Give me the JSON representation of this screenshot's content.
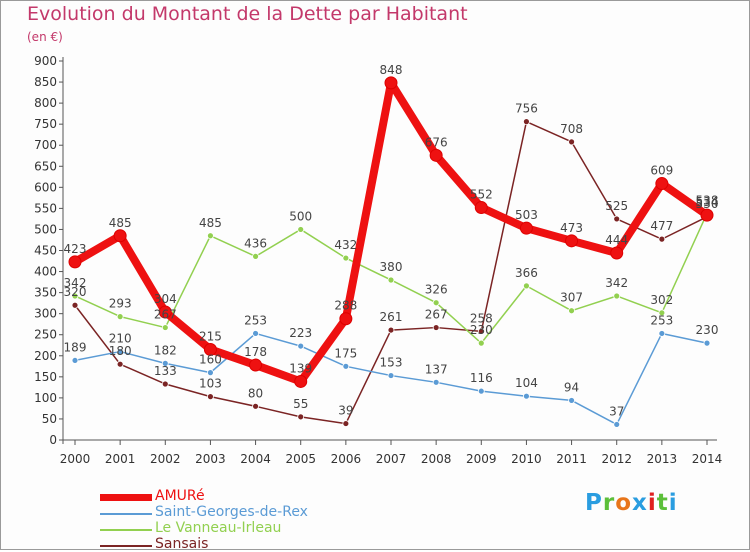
{
  "header": {
    "title": "Evolution du Montant de la Dette par Habitant",
    "subtitle": "(en €)"
  },
  "logo": {
    "text": "Proxiti",
    "colors": [
      "#2a9de0",
      "#5cbf3a",
      "#e8751a",
      "#2a9de0",
      "#e02020",
      "#5cbf3a",
      "#2a9de0"
    ]
  },
  "chart_data": {
    "type": "line",
    "title": "Evolution du Montant de la Dette par Habitant",
    "subtitle": "(en €)",
    "x": [
      "2000",
      "2001",
      "2002",
      "2003",
      "2004",
      "2005",
      "2006",
      "2007",
      "2008",
      "2009",
      "2010",
      "2011",
      "2012",
      "2013",
      "2014"
    ],
    "ylim": [
      0,
      900
    ],
    "yticks": [
      0,
      50,
      100,
      150,
      200,
      250,
      300,
      350,
      400,
      450,
      500,
      550,
      600,
      650,
      700,
      750,
      800,
      850,
      900
    ],
    "grid": false,
    "legend_position": "bottom-left",
    "series": [
      {
        "name": "AMURé",
        "color": "#ee1111",
        "width": 8,
        "values": [
          423,
          485,
          304,
          215,
          178,
          139,
          288,
          848,
          676,
          552,
          503,
          473,
          444,
          609,
          534
        ]
      },
      {
        "name": "Saint-Georges-de-Rex",
        "color": "#5b9bd5",
        "width": 1.5,
        "values": [
          189,
          210,
          182,
          160,
          253,
          223,
          175,
          153,
          137,
          116,
          104,
          94,
          37,
          253,
          230
        ]
      },
      {
        "name": "Le Vanneau-Irleau",
        "color": "#92d050",
        "width": 1.5,
        "values": [
          342,
          293,
          267,
          485,
          436,
          500,
          432,
          380,
          326,
          230,
          366,
          307,
          342,
          302,
          538
        ]
      },
      {
        "name": "Sansais",
        "color": "#7b2424",
        "width": 1.5,
        "values": [
          320,
          180,
          133,
          103,
          80,
          55,
          39,
          261,
          267,
          258,
          756,
          708,
          525,
          477,
          530
        ]
      }
    ]
  }
}
